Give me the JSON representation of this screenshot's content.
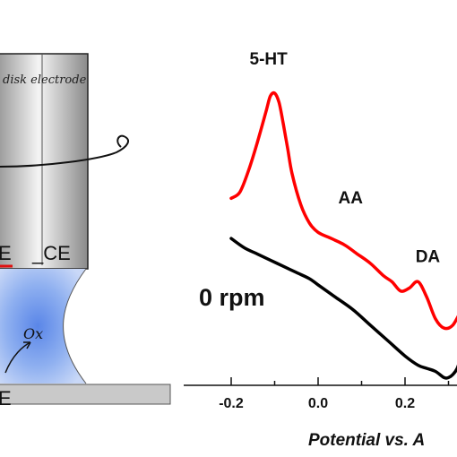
{
  "schematic": {
    "electrode_label": "disk electrode",
    "we_label": "E",
    "ce_label": "_CE",
    "ox_label": "Ox",
    "substrate_label": "E"
  },
  "chart_data": {
    "type": "line",
    "xlabel": "Potential vs. A",
    "ylabel": "",
    "xlim": [
      -0.25,
      0.42
    ],
    "x_ticks": [
      "-0.2",
      "0.0",
      "0.2"
    ],
    "condition_label": "0 rpm",
    "series": [
      {
        "color": "#ff0000",
        "x": [
          -0.2,
          -0.18,
          -0.16,
          -0.14,
          -0.12,
          -0.11,
          -0.1,
          -0.09,
          -0.08,
          -0.07,
          -0.06,
          -0.04,
          -0.02,
          0.0,
          0.03,
          0.06,
          0.09,
          0.12,
          0.15,
          0.17,
          0.19,
          0.21,
          0.23,
          0.25,
          0.27,
          0.29,
          0.31,
          0.33
        ],
        "y": [
          0.46,
          0.48,
          0.55,
          0.64,
          0.74,
          0.79,
          0.8,
          0.77,
          0.7,
          0.62,
          0.54,
          0.44,
          0.38,
          0.35,
          0.33,
          0.31,
          0.28,
          0.25,
          0.21,
          0.19,
          0.16,
          0.17,
          0.19,
          0.14,
          0.07,
          0.04,
          0.05,
          0.1
        ]
      },
      {
        "color": "#000000",
        "x": [
          -0.2,
          -0.17,
          -0.14,
          -0.11,
          -0.08,
          -0.05,
          -0.02,
          0.0,
          0.04,
          0.08,
          0.12,
          0.16,
          0.2,
          0.23,
          0.25,
          0.27,
          0.29,
          0.3,
          0.31,
          0.32,
          0.33
        ],
        "y": [
          0.33,
          0.3,
          0.28,
          0.26,
          0.24,
          0.22,
          0.2,
          0.18,
          0.14,
          0.1,
          0.05,
          0.0,
          -0.05,
          -0.08,
          -0.09,
          -0.1,
          -0.12,
          -0.12,
          -0.11,
          -0.09,
          -0.05
        ]
      }
    ],
    "annotations": [
      {
        "text": "5-HT",
        "x": -0.1,
        "y": 0.8
      },
      {
        "text": "AA",
        "x": 0.03,
        "y": 0.38
      },
      {
        "text": "DA",
        "x": 0.22,
        "y": 0.19
      }
    ]
  }
}
